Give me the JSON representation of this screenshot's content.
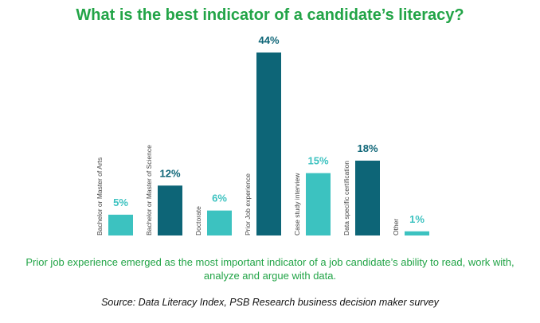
{
  "title": "What is the best indicator of a candidate’s literacy?",
  "summary": "Prior job experience emerged as the most important indicator of a job candidate’s ability to read, work with, analyze and argue with data.",
  "source": "Source: Data Literacy Index, PSB Research business decision maker survey",
  "colors": {
    "title": "#22a447",
    "teal_light": "#3cc2c0",
    "teal_dark": "#0d6577"
  },
  "chart_data": {
    "type": "bar",
    "title": "What is the best indicator of a candidate’s literacy?",
    "categories": [
      "Bachelor or Master of Arts",
      "Bachelor or Master of Science",
      "Doctorate",
      "Prior Job experience",
      "Case study interview",
      "Data specific certification",
      "Other"
    ],
    "values": [
      5,
      12,
      6,
      44,
      15,
      18,
      1
    ],
    "value_labels": [
      "5%",
      "12%",
      "6%",
      "44%",
      "15%",
      "18%",
      "1%"
    ],
    "bar_colors": [
      "#3cc2c0",
      "#0d6577",
      "#3cc2c0",
      "#0d6577",
      "#3cc2c0",
      "#0d6577",
      "#3cc2c0"
    ],
    "ylim": [
      0,
      44
    ],
    "unit": "%",
    "grid": false,
    "legend": "none"
  }
}
